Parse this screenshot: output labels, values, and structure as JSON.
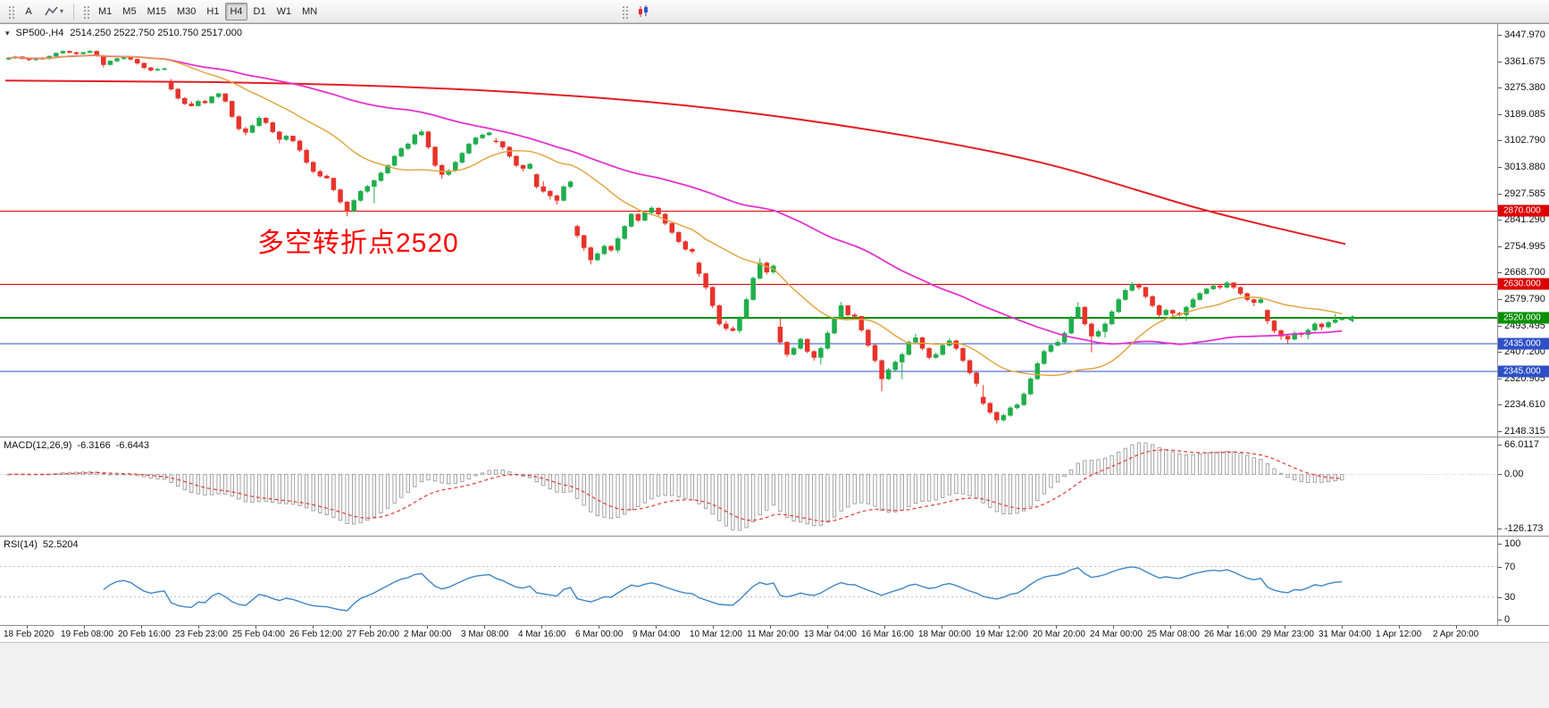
{
  "icons": {
    "dropdown_caret": "▾",
    "chart_context_arrow": "▾"
  },
  "toolbar": {
    "text_tool_label": "A",
    "timeframes": [
      "M1",
      "M5",
      "M15",
      "M30",
      "H1",
      "H4",
      "D1",
      "W1",
      "MN"
    ],
    "active_timeframe": "H4"
  },
  "chart": {
    "symbol_title": "SP500-,H4",
    "ohlc_text": "2514.250 2522.750 2510.750 2517.000",
    "annotation": {
      "text": "多空转折点2520",
      "color": "#ff0000"
    },
    "price_axis_labels": [
      "3447.970",
      "3361.675",
      "3275.380",
      "3189.085",
      "3102.790",
      "3013.880",
      "2927.585",
      "2841.290",
      "2754.995",
      "2668.700",
      "2579.790",
      "2493.495",
      "2407.200",
      "2320.905",
      "2234.610",
      "2148.315"
    ],
    "time_axis_labels": [
      "18 Feb 2020",
      "19 Feb 08:00",
      "20 Feb 16:00",
      "23 Feb 23:00",
      "25 Feb 04:00",
      "26 Feb 12:00",
      "27 Feb 20:00",
      "2 Mar 00:00",
      "3 Mar 08:00",
      "4 Mar 16:00",
      "6 Mar 00:00",
      "9 Mar 04:00",
      "10 Mar 12:00",
      "11 Mar 20:00",
      "13 Mar 04:00",
      "16 Mar 16:00",
      "18 Mar 00:00",
      "19 Mar 12:00",
      "20 Mar 20:00",
      "24 Mar 00:00",
      "25 Mar 08:00",
      "26 Mar 16:00",
      "29 Mar 23:00",
      "31 Mar 04:00",
      "1 Apr 12:00",
      "2 Apr 20:00"
    ],
    "levels": [
      {
        "price": 2870,
        "label": "2870.000",
        "color": "#dd0000",
        "width": 1
      },
      {
        "price": 2630,
        "label": "2630.000",
        "color": "#dd0000",
        "width": 1
      },
      {
        "price": 2520,
        "label": "2520.000",
        "color": "#089000",
        "width": 2
      },
      {
        "price": 2435,
        "label": "2435.000",
        "color": "#2d50c8",
        "width": 1
      },
      {
        "price": 2345,
        "label": "2345.000",
        "color": "#2d50c8",
        "width": 1
      }
    ],
    "colors": {
      "up": "#1fae4b",
      "down": "#e8332a",
      "ma_fast": "#e2a23b",
      "ma_mid": "#e332cf",
      "ma_slow": "#e31e24",
      "macd_hist": "#9b9b9b",
      "macd_signal": "#e53935",
      "rsi": "#3f86c7",
      "level_dotted": "#c0c0cc"
    },
    "macd": {
      "name": "MACD(12,26,9)",
      "value_main": "-6.3166",
      "value_signal": "-6.6443",
      "axis_labels": [
        "66.0117",
        "0.00",
        "-126.173"
      ]
    },
    "rsi": {
      "name": "RSI(14)",
      "value": "52.5204",
      "axis_labels": [
        "100",
        "70",
        "30",
        "0"
      ],
      "levels": [
        70,
        30
      ]
    }
  },
  "chart_data": {
    "type": "candlestick",
    "symbol": "SP500-",
    "timeframe": "H4",
    "title": "SP500-,H4 2514.250 2522.750 2510.750 2517.000",
    "current_ohlc": {
      "open": 2514.25,
      "high": 2522.75,
      "low": 2510.75,
      "close": 2517.0
    },
    "ylim": [
      2148.315,
      3447.97
    ],
    "x_range": [
      "18 Feb 2020",
      "2 Apr 20:00"
    ],
    "horizontal_levels": [
      2870,
      2630,
      2520,
      2435,
      2345
    ],
    "ma_fast_period": 20,
    "ma_mid_period": 60,
    "ma_slow_points": [
      [
        0,
        3298
      ],
      [
        0.1,
        3296
      ],
      [
        0.2,
        3290
      ],
      [
        0.3,
        3278
      ],
      [
        0.4,
        3256
      ],
      [
        0.5,
        3222
      ],
      [
        0.6,
        3168
      ],
      [
        0.7,
        3098
      ],
      [
        0.78,
        3025
      ],
      [
        0.84,
        2945
      ],
      [
        0.9,
        2865
      ],
      [
        1,
        2762
      ]
    ],
    "macd_params": [
      12,
      26,
      9
    ],
    "rsi_period": 14,
    "candles": [
      [
        3368,
        3375,
        3365,
        3372
      ],
      [
        3372,
        3379,
        3369,
        3376
      ],
      [
        3376,
        3378,
        3367,
        3370
      ],
      [
        3370,
        3373,
        3362,
        3366
      ],
      [
        3366,
        3374,
        3363,
        3371
      ],
      [
        3371,
        3375,
        3367,
        3370
      ],
      [
        3370,
        3380,
        3366,
        3378
      ],
      [
        3378,
        3390,
        3375,
        3388
      ],
      [
        3388,
        3397,
        3385,
        3394
      ],
      [
        3394,
        3396,
        3387,
        3390
      ],
      [
        3390,
        3393,
        3382,
        3386
      ],
      [
        3386,
        3392,
        3383,
        3390
      ],
      [
        3390,
        3398,
        3388,
        3394
      ],
      [
        3394,
        3396,
        3376,
        3380
      ],
      [
        3380,
        3382,
        3341,
        3350
      ],
      [
        3350,
        3365,
        3347,
        3362
      ],
      [
        3362,
        3373,
        3358,
        3370
      ],
      [
        3370,
        3376,
        3366,
        3373
      ],
      [
        3373,
        3378,
        3364,
        3368
      ],
      [
        3368,
        3370,
        3350,
        3355
      ],
      [
        3355,
        3357,
        3336,
        3340
      ],
      [
        3340,
        3343,
        3328,
        3332
      ],
      [
        3332,
        3340,
        3329,
        3335
      ],
      [
        3335,
        3341,
        3331,
        3337
      ],
      [
        3290,
        3303,
        3265,
        3270
      ],
      [
        3270,
        3274,
        3235,
        3240
      ],
      [
        3240,
        3244,
        3218,
        3222
      ],
      [
        3222,
        3230,
        3213,
        3215
      ],
      [
        3215,
        3236,
        3214,
        3230
      ],
      [
        3230,
        3235,
        3221,
        3225
      ],
      [
        3225,
        3248,
        3222,
        3245
      ],
      [
        3245,
        3258,
        3240,
        3255
      ],
      [
        3255,
        3256,
        3226,
        3230
      ],
      [
        3230,
        3233,
        3175,
        3180
      ],
      [
        3180,
        3184,
        3134,
        3140
      ],
      [
        3140,
        3146,
        3118,
        3128
      ],
      [
        3128,
        3155,
        3125,
        3150
      ],
      [
        3150,
        3182,
        3147,
        3175
      ],
      [
        3175,
        3178,
        3155,
        3160
      ],
      [
        3160,
        3163,
        3125,
        3130
      ],
      [
        3130,
        3133,
        3092,
        3105
      ],
      [
        3105,
        3120,
        3100,
        3116
      ],
      [
        3116,
        3117,
        3095,
        3100
      ],
      [
        3100,
        3104,
        3064,
        3070
      ],
      [
        3070,
        3074,
        3024,
        3030
      ],
      [
        3030,
        3034,
        2994,
        3000
      ],
      [
        3000,
        3006,
        2980,
        2985
      ],
      [
        2985,
        2990,
        2977,
        2978
      ],
      [
        2978,
        2980,
        2935,
        2940
      ],
      [
        2940,
        2944,
        2894,
        2900
      ],
      [
        2900,
        2903,
        2853,
        2870
      ],
      [
        2870,
        2910,
        2866,
        2905
      ],
      [
        2905,
        2940,
        2901,
        2935
      ],
      [
        2935,
        2956,
        2930,
        2951
      ],
      [
        2951,
        2974,
        2896,
        2970
      ],
      [
        2970,
        3000,
        2966,
        2995
      ],
      [
        2995,
        3024,
        2990,
        3020
      ],
      [
        3020,
        3054,
        3016,
        3050
      ],
      [
        3050,
        3080,
        3046,
        3075
      ],
      [
        3075,
        3095,
        3070,
        3090
      ],
      [
        3090,
        3125,
        3086,
        3120
      ],
      [
        3120,
        3137,
        3115,
        3130
      ],
      [
        3130,
        3132,
        3074,
        3080
      ],
      [
        3080,
        3083,
        3014,
        3020
      ],
      [
        3020,
        3024,
        2976,
        2990
      ],
      [
        2990,
        3008,
        2985,
        3003
      ],
      [
        3003,
        3035,
        2998,
        3030
      ],
      [
        3030,
        3064,
        3026,
        3060
      ],
      [
        3060,
        3094,
        3056,
        3090
      ],
      [
        3090,
        3114,
        3086,
        3110
      ],
      [
        3110,
        3124,
        3106,
        3120
      ],
      [
        3120,
        3130,
        3116,
        3127
      ],
      [
        3100,
        3110,
        3092,
        3098
      ],
      [
        3098,
        3100,
        3072,
        3080
      ],
      [
        3080,
        3083,
        3044,
        3050
      ],
      [
        3050,
        3053,
        3014,
        3020
      ],
      [
        3020,
        3023,
        3000,
        3010
      ],
      [
        3010,
        3028,
        3006,
        3024
      ],
      [
        2990,
        2993,
        2944,
        2950
      ],
      [
        2950,
        2968,
        2930,
        2935
      ],
      [
        2935,
        2940,
        2908,
        2920
      ],
      [
        2920,
        2924,
        2892,
        2905
      ],
      [
        2905,
        2955,
        2902,
        2950
      ],
      [
        2950,
        2970,
        2945,
        2966
      ],
      [
        2820,
        2825,
        2782,
        2790
      ],
      [
        2790,
        2793,
        2740,
        2750
      ],
      [
        2750,
        2754,
        2695,
        2710
      ],
      [
        2710,
        2736,
        2706,
        2730
      ],
      [
        2730,
        2760,
        2726,
        2755
      ],
      [
        2755,
        2758,
        2736,
        2742
      ],
      [
        2742,
        2786,
        2734,
        2780
      ],
      [
        2780,
        2824,
        2776,
        2820
      ],
      [
        2820,
        2864,
        2816,
        2860
      ],
      [
        2860,
        2862,
        2834,
        2840
      ],
      [
        2840,
        2870,
        2836,
        2865
      ],
      [
        2865,
        2885,
        2860,
        2880
      ],
      [
        2880,
        2882,
        2854,
        2860
      ],
      [
        2860,
        2864,
        2824,
        2830
      ],
      [
        2830,
        2834,
        2794,
        2800
      ],
      [
        2800,
        2804,
        2764,
        2770
      ],
      [
        2770,
        2774,
        2740,
        2745
      ],
      [
        2745,
        2750,
        2730,
        2738
      ],
      [
        2700,
        2705,
        2655,
        2665
      ],
      [
        2665,
        2668,
        2612,
        2620
      ],
      [
        2620,
        2624,
        2552,
        2560
      ],
      [
        2560,
        2564,
        2494,
        2500
      ],
      [
        2500,
        2510,
        2478,
        2485
      ],
      [
        2485,
        2492,
        2475,
        2478
      ],
      [
        2478,
        2526,
        2470,
        2520
      ],
      [
        2520,
        2586,
        2516,
        2580
      ],
      [
        2580,
        2656,
        2576,
        2650
      ],
      [
        2650,
        2715,
        2646,
        2700
      ],
      [
        2700,
        2704,
        2662,
        2670
      ],
      [
        2670,
        2696,
        2664,
        2690
      ],
      [
        2490,
        2520,
        2432,
        2440
      ],
      [
        2440,
        2444,
        2392,
        2400
      ],
      [
        2400,
        2426,
        2396,
        2420
      ],
      [
        2420,
        2455,
        2416,
        2450
      ],
      [
        2450,
        2452,
        2404,
        2410
      ],
      [
        2410,
        2414,
        2380,
        2390
      ],
      [
        2390,
        2426,
        2367,
        2420
      ],
      [
        2420,
        2476,
        2416,
        2470
      ],
      [
        2470,
        2526,
        2466,
        2520
      ],
      [
        2520,
        2572,
        2516,
        2560
      ],
      [
        2560,
        2562,
        2524,
        2530
      ],
      [
        2530,
        2536,
        2518,
        2525
      ],
      [
        2525,
        2526,
        2474,
        2480
      ],
      [
        2480,
        2484,
        2424,
        2430
      ],
      [
        2430,
        2434,
        2374,
        2380
      ],
      [
        2380,
        2384,
        2280,
        2320
      ],
      [
        2320,
        2356,
        2316,
        2350
      ],
      [
        2350,
        2380,
        2346,
        2375
      ],
      [
        2375,
        2406,
        2319,
        2400
      ],
      [
        2400,
        2446,
        2396,
        2440
      ],
      [
        2440,
        2468,
        2436,
        2455
      ],
      [
        2455,
        2458,
        2414,
        2420
      ],
      [
        2420,
        2424,
        2384,
        2390
      ],
      [
        2390,
        2406,
        2386,
        2400
      ],
      [
        2400,
        2436,
        2396,
        2430
      ],
      [
        2430,
        2453,
        2426,
        2445
      ],
      [
        2445,
        2448,
        2414,
        2420
      ],
      [
        2420,
        2424,
        2374,
        2380
      ],
      [
        2380,
        2384,
        2334,
        2340
      ],
      [
        2340,
        2344,
        2295,
        2305
      ],
      [
        2260,
        2300,
        2234,
        2240
      ],
      [
        2240,
        2244,
        2204,
        2210
      ],
      [
        2210,
        2214,
        2174,
        2185
      ],
      [
        2185,
        2206,
        2180,
        2200
      ],
      [
        2200,
        2230,
        2196,
        2225
      ],
      [
        2225,
        2240,
        2220,
        2235
      ],
      [
        2235,
        2276,
        2230,
        2270
      ],
      [
        2270,
        2326,
        2266,
        2320
      ],
      [
        2320,
        2376,
        2316,
        2370
      ],
      [
        2370,
        2416,
        2366,
        2410
      ],
      [
        2410,
        2436,
        2406,
        2430
      ],
      [
        2430,
        2449,
        2426,
        2440
      ],
      [
        2440,
        2476,
        2436,
        2470
      ],
      [
        2470,
        2526,
        2466,
        2520
      ],
      [
        2520,
        2571,
        2516,
        2555
      ],
      [
        2555,
        2558,
        2494,
        2500
      ],
      [
        2500,
        2504,
        2407,
        2460
      ],
      [
        2460,
        2481,
        2456,
        2475
      ],
      [
        2475,
        2506,
        2455,
        2500
      ],
      [
        2500,
        2546,
        2496,
        2540
      ],
      [
        2540,
        2586,
        2536,
        2580
      ],
      [
        2580,
        2616,
        2576,
        2610
      ],
      [
        2610,
        2637,
        2606,
        2630
      ],
      [
        2630,
        2634,
        2612,
        2620
      ],
      [
        2620,
        2622,
        2584,
        2590
      ],
      [
        2590,
        2594,
        2554,
        2560
      ],
      [
        2560,
        2564,
        2520,
        2530
      ],
      [
        2530,
        2550,
        2526,
        2545
      ],
      [
        2545,
        2548,
        2528,
        2535
      ],
      [
        2535,
        2540,
        2524,
        2530
      ],
      [
        2530,
        2560,
        2510,
        2555
      ],
      [
        2555,
        2586,
        2551,
        2580
      ],
      [
        2580,
        2605,
        2576,
        2600
      ],
      [
        2600,
        2619,
        2596,
        2615
      ],
      [
        2615,
        2631,
        2611,
        2625
      ],
      [
        2625,
        2629,
        2614,
        2620
      ],
      [
        2620,
        2640,
        2616,
        2635
      ],
      [
        2635,
        2637,
        2614,
        2620
      ],
      [
        2620,
        2623,
        2594,
        2600
      ],
      [
        2600,
        2603,
        2574,
        2580
      ],
      [
        2580,
        2583,
        2558,
        2570
      ],
      [
        2570,
        2586,
        2566,
        2580
      ],
      [
        2545,
        2548,
        2500,
        2510
      ],
      [
        2510,
        2514,
        2470,
        2478
      ],
      [
        2478,
        2482,
        2448,
        2460
      ],
      [
        2460,
        2466,
        2435,
        2450
      ],
      [
        2450,
        2476,
        2446,
        2470
      ],
      [
        2470,
        2474,
        2456,
        2465
      ],
      [
        2465,
        2486,
        2450,
        2480
      ],
      [
        2480,
        2506,
        2476,
        2500
      ],
      [
        2500,
        2504,
        2480,
        2490
      ],
      [
        2490,
        2510,
        2486,
        2505
      ],
      [
        2505,
        2533,
        2501,
        2514
      ],
      [
        2514.3,
        2522.8,
        2510.8,
        2517
      ]
    ]
  }
}
